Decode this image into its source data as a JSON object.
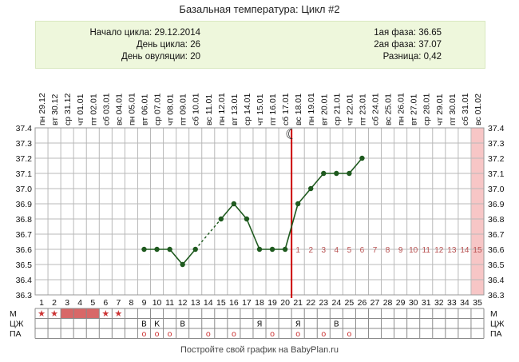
{
  "title": "Базальная температура: Цикл #2",
  "info": {
    "cycle_start": "Начало цикла: 29.12.2014",
    "cycle_day": "День цикла: 26",
    "ovulation_day": "День овуляции: 20",
    "phase1": "1ая фаза: 36.65",
    "phase2": "2ая фаза: 37.07",
    "difference": "Разница: 0,42"
  },
  "chart_data": {
    "type": "line",
    "ylim": [
      36.3,
      37.4
    ],
    "yticks": [
      "37.4",
      "37.3",
      "37.2",
      "37.1",
      "37.0",
      "36.9",
      "36.8",
      "36.7",
      "36.6",
      "36.5",
      "36.4",
      "36.3"
    ],
    "days": [
      1,
      2,
      3,
      4,
      5,
      6,
      7,
      8,
      9,
      10,
      11,
      12,
      13,
      14,
      15,
      16,
      17,
      18,
      19,
      20,
      21,
      22,
      23,
      24,
      25,
      26,
      27,
      28,
      29,
      30,
      31,
      32,
      33,
      34,
      35
    ],
    "weekdays": [
      "пн",
      "вт",
      "ср",
      "чт",
      "пт",
      "сб",
      "вс",
      "пн",
      "вт",
      "ср",
      "чт",
      "пт",
      "сб",
      "вс",
      "пн",
      "вт",
      "ср",
      "чт",
      "пт",
      "сб",
      "вс",
      "пн",
      "вт",
      "ср",
      "чт",
      "пт",
      "сб",
      "вс",
      "пн",
      "вт",
      "ср",
      "чт",
      "пт",
      "сб",
      "вс"
    ],
    "dates": [
      "29.12",
      "30.12",
      "31.12",
      "01.01",
      "02.01",
      "03.01",
      "04.01",
      "05.01",
      "06.01",
      "07.01",
      "08.01",
      "09.01",
      "10.01",
      "11.01",
      "12.01",
      "13.01",
      "14.01",
      "15.01",
      "16.01",
      "17.01",
      "18.01",
      "19.01",
      "20.01",
      "21.01",
      "22.01",
      "23.01",
      "24.01",
      "25.01",
      "26.01",
      "27.01",
      "28.01",
      "29.01",
      "30.01",
      "31.01",
      "01.02"
    ],
    "temperature": [
      null,
      null,
      null,
      null,
      null,
      null,
      null,
      null,
      36.6,
      36.6,
      36.6,
      36.5,
      36.6,
      null,
      36.8,
      36.9,
      36.8,
      36.6,
      36.6,
      36.6,
      36.9,
      37.0,
      37.1,
      37.1,
      37.1,
      37.2
    ],
    "dashed_segments": [
      [
        13,
        15
      ]
    ],
    "ovulation_day": 20,
    "ovulation_marker": "☾",
    "coverline": 36.6,
    "postovulation_labels": [
      "1",
      "2",
      "3",
      "4",
      "5",
      "6",
      "7",
      "8",
      "9",
      "10",
      "11",
      "12",
      "13",
      "14",
      "15"
    ],
    "postovulation_start_day": 21,
    "highlighted_day": 35,
    "rows": [
      {
        "label": "М",
        "cells": {
          "1": "★",
          "2": "★",
          "6": "★",
          "7": "★"
        },
        "filled": [
          3,
          4,
          5
        ]
      },
      {
        "label": "ЦЖ",
        "cells": {
          "9": "В",
          "10": "К",
          "12": "В",
          "18": "Я",
          "21": "Я",
          "24": "В"
        }
      },
      {
        "label": "ПА",
        "cells": {
          "9": "o",
          "10": "o",
          "11": "o",
          "14": "o",
          "16": "o",
          "19": "o",
          "21": "o",
          "23": "o",
          "25": "o"
        }
      }
    ]
  },
  "colors": {
    "line": "#1f5a1f",
    "grid": "#b8b8b8",
    "ovulation_line": "#cc0000",
    "postov_label": "#b85050",
    "highlight": "#f7c6c6",
    "menstruation_fill": "#d86868",
    "star": "#cc3333",
    "info_bg": "#eef7dc"
  },
  "footer": "Постройте свой график на BabyPlan.ru"
}
